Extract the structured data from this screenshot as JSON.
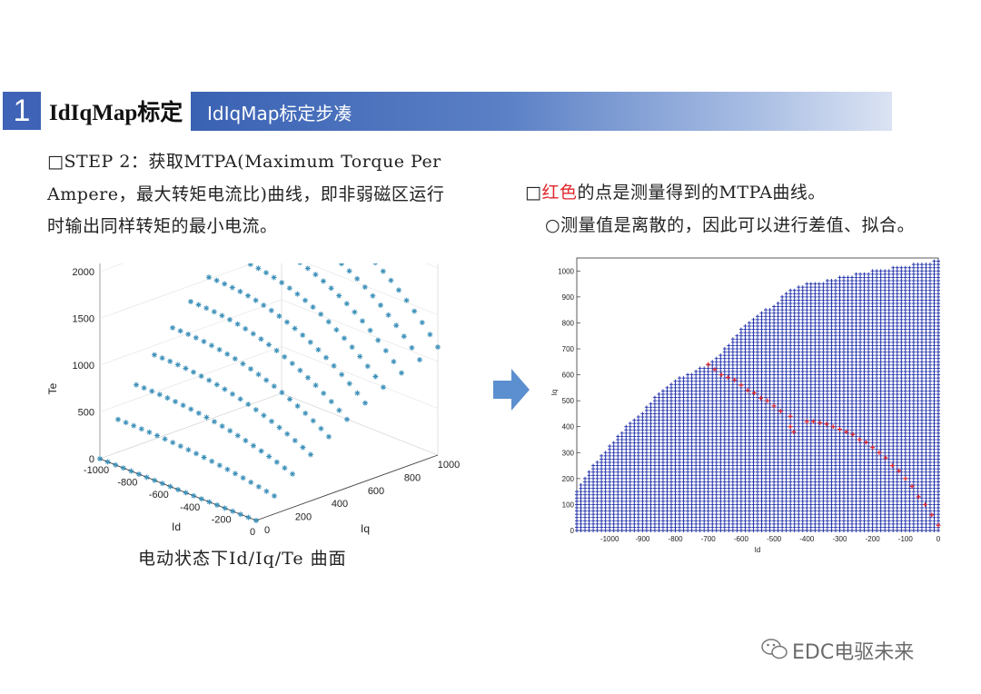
{
  "section": {
    "number": "1",
    "title": "IdIqMap标定",
    "band_label": "IdIqMap标定步凑"
  },
  "left_text": {
    "line1": "□STEP 2：获取MTPA(Maximum Torque Per",
    "line2": "Ampere，最大转矩电流比)曲线，即非弱磁区运行",
    "line3": "时输出同样转矩的最小电流。"
  },
  "right_text": {
    "line1_prefix": "□",
    "line1_red": "红色",
    "line1_rest": "的点是测量得到的MTPA曲线。",
    "line2": "○测量值是离散的，因此可以进行差值、拟合。"
  },
  "caption": "电动状态下Id/Iq/Te 曲面",
  "watermark": "EDC电驱未来",
  "icons": {
    "arrow": "right-arrow-icon",
    "watermark": "wechat-icon"
  },
  "colors": {
    "accent": "#3f63b6",
    "mark_3d": "#3a8fb8",
    "mark_blue": "#1a2aa8",
    "mark_red": "#e0262b"
  },
  "chart_data": [
    {
      "type": "scatter",
      "title": "",
      "xlabel": "Id",
      "ylabel": "Iq",
      "zlabel": "Te",
      "xlim": [
        -1000,
        0
      ],
      "ylim": [
        0,
        1000
      ],
      "zlim": [
        0,
        2300
      ],
      "x_ticks": [
        "-1000",
        "-800",
        "-600",
        "-400",
        "-200",
        "0"
      ],
      "y_ticks": [
        "0",
        "200",
        "400",
        "600",
        "800",
        "1000"
      ],
      "z_ticks": [
        "0",
        "500",
        "1000",
        "1500",
        "2000"
      ],
      "surface_rows": [
        {
          "iq": 0,
          "te_max": 0
        },
        {
          "iq": 100,
          "te_max": 350
        },
        {
          "iq": 200,
          "te_max": 650
        },
        {
          "iq": 300,
          "te_max": 900
        },
        {
          "iq": 400,
          "te_max": 1120
        },
        {
          "iq": 500,
          "te_max": 1330
        },
        {
          "iq": 600,
          "te_max": 1520
        },
        {
          "iq": 700,
          "te_max": 1700
        },
        {
          "iq": 800,
          "te_max": 1850
        },
        {
          "iq": 900,
          "te_max": 1980
        },
        {
          "iq": 1000,
          "te_max": 2100
        }
      ]
    },
    {
      "type": "scatter",
      "title": "",
      "xlabel": "Id",
      "ylabel": "Iq",
      "xlim": [
        -1100,
        0
      ],
      "ylim": [
        0,
        1050
      ],
      "x_ticks": [
        "-1000",
        "-900",
        "-800",
        "-700",
        "-600",
        "-500",
        "-400",
        "-300",
        "-200",
        "-100",
        "0"
      ],
      "y_ticks": [
        "0",
        "100",
        "200",
        "300",
        "400",
        "500",
        "600",
        "700",
        "800",
        "900",
        "1000"
      ],
      "grid_boundary": [
        [
          -1100,
          150
        ],
        [
          -1050,
          250
        ],
        [
          -1000,
          330
        ],
        [
          -950,
          400
        ],
        [
          -900,
          460
        ],
        [
          -850,
          530
        ],
        [
          -800,
          580
        ],
        [
          -750,
          610
        ],
        [
          -700,
          640
        ],
        [
          -650,
          700
        ],
        [
          -600,
          780
        ],
        [
          -550,
          830
        ],
        [
          -500,
          870
        ],
        [
          -450,
          930
        ],
        [
          -400,
          950
        ],
        [
          -350,
          960
        ],
        [
          -300,
          975
        ],
        [
          -250,
          990
        ],
        [
          -200,
          1000
        ],
        [
          -150,
          1010
        ],
        [
          -100,
          1020
        ],
        [
          -50,
          1030
        ],
        [
          0,
          1040
        ]
      ],
      "series": [
        {
          "name": "",
          "color": "red",
          "points": [
            [
              0,
              20
            ],
            [
              -20,
              60
            ],
            [
              -40,
              100
            ],
            [
              -60,
              130
            ],
            [
              -80,
              170
            ],
            [
              -100,
              200
            ],
            [
              -120,
              230
            ],
            [
              -140,
              250
            ],
            [
              -160,
              280
            ],
            [
              -180,
              300
            ],
            [
              -200,
              320
            ],
            [
              -220,
              340
            ],
            [
              -240,
              350
            ],
            [
              -260,
              370
            ],
            [
              -280,
              380
            ],
            [
              -300,
              390
            ],
            [
              -320,
              400
            ],
            [
              -340,
              410
            ],
            [
              -360,
              415
            ],
            [
              -380,
              420
            ],
            [
              -400,
              420
            ],
            [
              -440,
              380
            ],
            [
              -450,
              400
            ],
            [
              -450,
              440
            ],
            [
              -480,
              460
            ],
            [
              -500,
              480
            ],
            [
              -520,
              500
            ],
            [
              -540,
              510
            ],
            [
              -560,
              530
            ],
            [
              -580,
              540
            ],
            [
              -600,
              560
            ],
            [
              -620,
              580
            ],
            [
              -640,
              590
            ],
            [
              -660,
              600
            ],
            [
              -680,
              620
            ],
            [
              -700,
              640
            ]
          ]
        }
      ]
    }
  ]
}
